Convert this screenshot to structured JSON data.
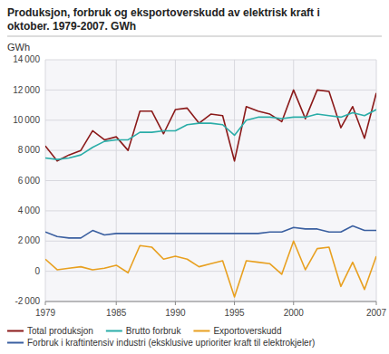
{
  "chart_data": {
    "type": "line",
    "title": "Produksjon, forbruk og eksportoverskudd av elektrisk kraft i\noktober. 1979-2007. GWh",
    "y_label": "GWh",
    "x": [
      1979,
      1980,
      1981,
      1982,
      1983,
      1984,
      1985,
      1986,
      1987,
      1988,
      1989,
      1990,
      1991,
      1992,
      1993,
      1994,
      1995,
      1996,
      1997,
      1998,
      1999,
      2000,
      2001,
      2002,
      2003,
      2004,
      2005,
      2006,
      2007
    ],
    "series": [
      {
        "name": "Total produksjon",
        "color": "#8B1A1A",
        "values": [
          8300,
          7300,
          7700,
          8000,
          9300,
          8700,
          8900,
          8000,
          10600,
          10600,
          9100,
          10700,
          10800,
          9800,
          10400,
          10300,
          7300,
          10900,
          10600,
          10400,
          9900,
          12000,
          10100,
          12000,
          11900,
          9500,
          10900,
          8800,
          11800
        ]
      },
      {
        "name": "Brutto forbruk",
        "color": "#2AADA8",
        "values": [
          7500,
          7400,
          7500,
          7700,
          8200,
          8600,
          8700,
          8700,
          9200,
          9200,
          9300,
          9300,
          9700,
          9800,
          9800,
          9700,
          9000,
          10000,
          10200,
          10200,
          10100,
          10200,
          10200,
          10400,
          10300,
          10200,
          10500,
          10300,
          10700
        ]
      },
      {
        "name": "Exportoverskudd",
        "color": "#E8A020",
        "values": [
          800,
          100,
          200,
          300,
          100,
          200,
          400,
          -100,
          1700,
          1600,
          800,
          1000,
          800,
          300,
          500,
          700,
          -1700,
          700,
          600,
          500,
          -200,
          2000,
          100,
          1500,
          1600,
          -1000,
          600,
          -1200,
          1000
        ]
      },
      {
        "name": "Forbruk i kraftintensiv industri (eksklusive uprioriter kraft til elektrokjeler)",
        "color": "#3A5FA0",
        "values": [
          2600,
          2300,
          2200,
          2200,
          2700,
          2400,
          2500,
          2500,
          2500,
          2500,
          2500,
          2500,
          2500,
          2500,
          2500,
          2500,
          2500,
          2500,
          2500,
          2600,
          2600,
          2900,
          2800,
          2800,
          2600,
          2600,
          3000,
          2700,
          2700
        ]
      }
    ],
    "xlim": [
      1979,
      2007
    ],
    "xticks": [
      1979,
      1985,
      1990,
      1995,
      2000,
      2007
    ],
    "ylim": [
      -2000,
      14000
    ],
    "yticks": [
      {
        "value": -2000,
        "label": "-2 000"
      },
      0,
      {
        "value": 2000,
        "label": "2 000"
      },
      {
        "value": 4000,
        "label": "4 000"
      },
      {
        "value": 6000,
        "label": "6 000"
      },
      {
        "value": 8000,
        "label": "8 000"
      },
      {
        "value": 10000,
        "label": "10 000"
      },
      {
        "value": 12000,
        "label": "12 000"
      },
      {
        "value": 14000,
        "label": "14 000"
      }
    ],
    "grid": true,
    "legend": "bottom"
  }
}
